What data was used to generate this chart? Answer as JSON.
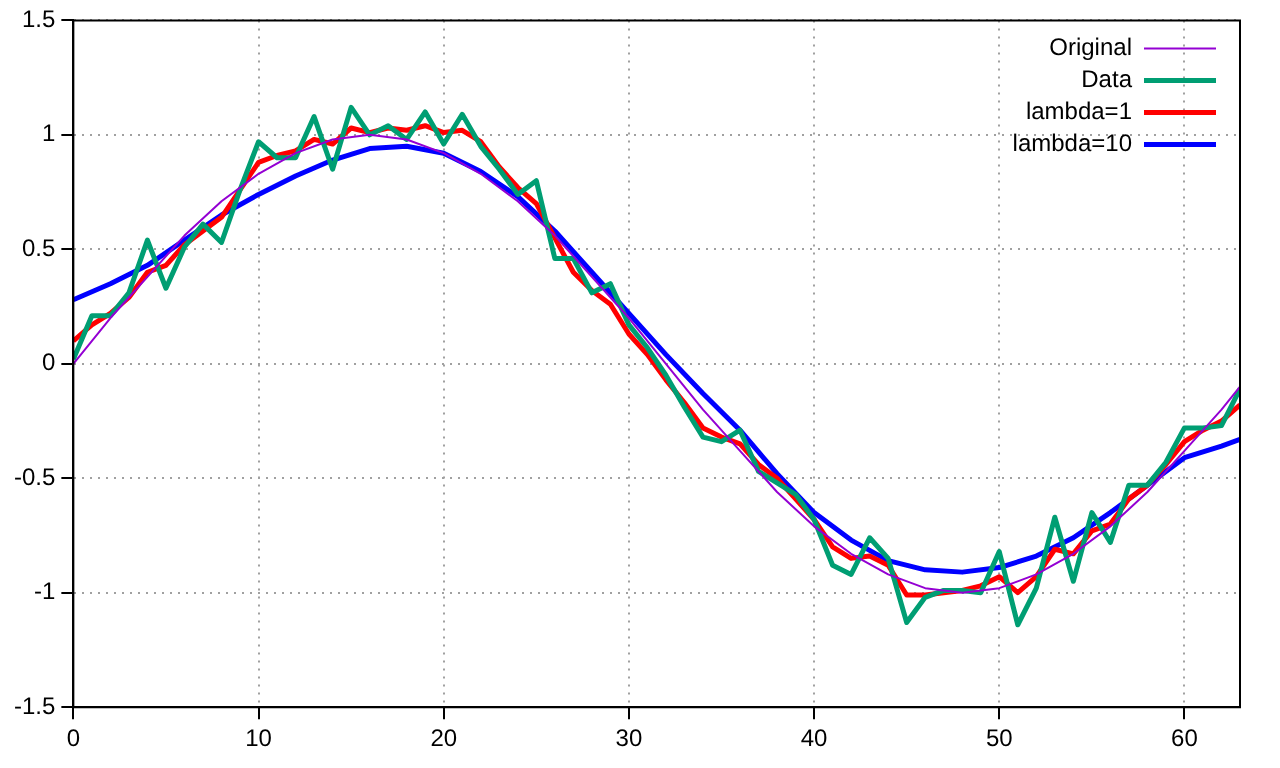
{
  "chart_data": {
    "type": "line",
    "xlim": [
      0,
      63
    ],
    "xticks": [
      0,
      10,
      20,
      30,
      40,
      50,
      60
    ],
    "ylim": [
      -1.5,
      1.5
    ],
    "yticks": [
      -1.5,
      -1,
      -0.5,
      0,
      0.5,
      1,
      1.5
    ],
    "grid": true,
    "legend": "top right",
    "marker": "none",
    "series": [
      {
        "name": "Original",
        "color": "#9400d3",
        "x": [
          0,
          2,
          4,
          6,
          8,
          10,
          12,
          14,
          16,
          18,
          20,
          22,
          24,
          26,
          28,
          30,
          32,
          34,
          36,
          38,
          40,
          42,
          44,
          46,
          48,
          50,
          52,
          54,
          56,
          58,
          60,
          62,
          63
        ],
        "values": [
          0,
          0.2,
          0.38,
          0.56,
          0.71,
          0.83,
          0.92,
          0.98,
          1,
          0.98,
          0.92,
          0.83,
          0.71,
          0.56,
          0.38,
          0.2,
          0,
          -0.2,
          -0.38,
          -0.56,
          -0.71,
          -0.83,
          -0.92,
          -0.98,
          -1,
          -0.98,
          -0.92,
          -0.83,
          -0.71,
          -0.56,
          -0.38,
          -0.2,
          -0.1
        ]
      },
      {
        "name": "Data",
        "color": "#009e73",
        "x": [
          0,
          1,
          2,
          3,
          4,
          5,
          6,
          7,
          8,
          9,
          10,
          11,
          12,
          13,
          14,
          15,
          16,
          17,
          18,
          19,
          20,
          21,
          22,
          23,
          24,
          25,
          26,
          27,
          28,
          29,
          30,
          31,
          32,
          33,
          34,
          35,
          36,
          37,
          38,
          39,
          40,
          41,
          42,
          43,
          44,
          45,
          46,
          47,
          48,
          49,
          50,
          51,
          52,
          53,
          54,
          55,
          56,
          57,
          58,
          59,
          60,
          61,
          62,
          63
        ],
        "values": [
          0.02,
          0.21,
          0.21,
          0.31,
          0.54,
          0.33,
          0.51,
          0.61,
          0.53,
          0.76,
          0.97,
          0.9,
          0.9,
          1.08,
          0.85,
          1.12,
          1,
          1.04,
          0.98,
          1.1,
          0.96,
          1.09,
          0.95,
          0.85,
          0.74,
          0.8,
          0.46,
          0.46,
          0.31,
          0.35,
          0.17,
          0.07,
          -0.05,
          -0.19,
          -0.32,
          -0.34,
          -0.29,
          -0.47,
          -0.52,
          -0.57,
          -0.68,
          -0.88,
          -0.92,
          -0.76,
          -0.85,
          -1.13,
          -1.02,
          -0.99,
          -0.99,
          -1,
          -0.82,
          -1.14,
          -0.98,
          -0.67,
          -0.95,
          -0.65,
          -0.78,
          -0.53,
          -0.53,
          -0.43,
          -0.28,
          -0.28,
          -0.27,
          -0.11
        ]
      },
      {
        "name": "lambda=1",
        "color": "#ff0000",
        "x": [
          0,
          1,
          2,
          3,
          4,
          5,
          6,
          7,
          8,
          9,
          10,
          11,
          12,
          13,
          14,
          15,
          16,
          17,
          18,
          19,
          20,
          21,
          22,
          23,
          24,
          25,
          26,
          27,
          28,
          29,
          30,
          31,
          32,
          33,
          34,
          35,
          36,
          37,
          38,
          39,
          40,
          41,
          42,
          43,
          44,
          45,
          46,
          47,
          48,
          49,
          50,
          51,
          52,
          53,
          54,
          55,
          56,
          57,
          58,
          59,
          60,
          61,
          62,
          63
        ],
        "values": [
          0.1,
          0.17,
          0.22,
          0.29,
          0.4,
          0.43,
          0.52,
          0.58,
          0.64,
          0.76,
          0.88,
          0.91,
          0.93,
          0.98,
          0.96,
          1.03,
          1.01,
          1.03,
          1.02,
          1.04,
          1.01,
          1.02,
          0.97,
          0.86,
          0.77,
          0.7,
          0.55,
          0.4,
          0.32,
          0.26,
          0.13,
          0.04,
          -0.07,
          -0.17,
          -0.28,
          -0.32,
          -0.35,
          -0.44,
          -0.5,
          -0.59,
          -0.68,
          -0.8,
          -0.85,
          -0.84,
          -0.88,
          -1.01,
          -1.01,
          -1,
          -0.99,
          -0.97,
          -0.93,
          -1,
          -0.93,
          -0.81,
          -0.83,
          -0.73,
          -0.7,
          -0.59,
          -0.53,
          -0.44,
          -0.34,
          -0.29,
          -0.25,
          -0.18
        ]
      },
      {
        "name": "lambda=10",
        "color": "#0000ff",
        "x": [
          0,
          2,
          4,
          6,
          8,
          10,
          12,
          14,
          16,
          18,
          20,
          22,
          24,
          26,
          28,
          30,
          32,
          34,
          36,
          38,
          40,
          42,
          44,
          46,
          48,
          50,
          52,
          54,
          56,
          58,
          60,
          62,
          63
        ],
        "values": [
          0.28,
          0.35,
          0.43,
          0.54,
          0.65,
          0.74,
          0.82,
          0.89,
          0.94,
          0.95,
          0.92,
          0.84,
          0.73,
          0.58,
          0.4,
          0.22,
          0.04,
          -0.13,
          -0.29,
          -0.48,
          -0.65,
          -0.77,
          -0.86,
          -0.9,
          -0.91,
          -0.89,
          -0.84,
          -0.76,
          -0.65,
          -0.53,
          -0.41,
          -0.36,
          -0.33
        ]
      }
    ]
  }
}
